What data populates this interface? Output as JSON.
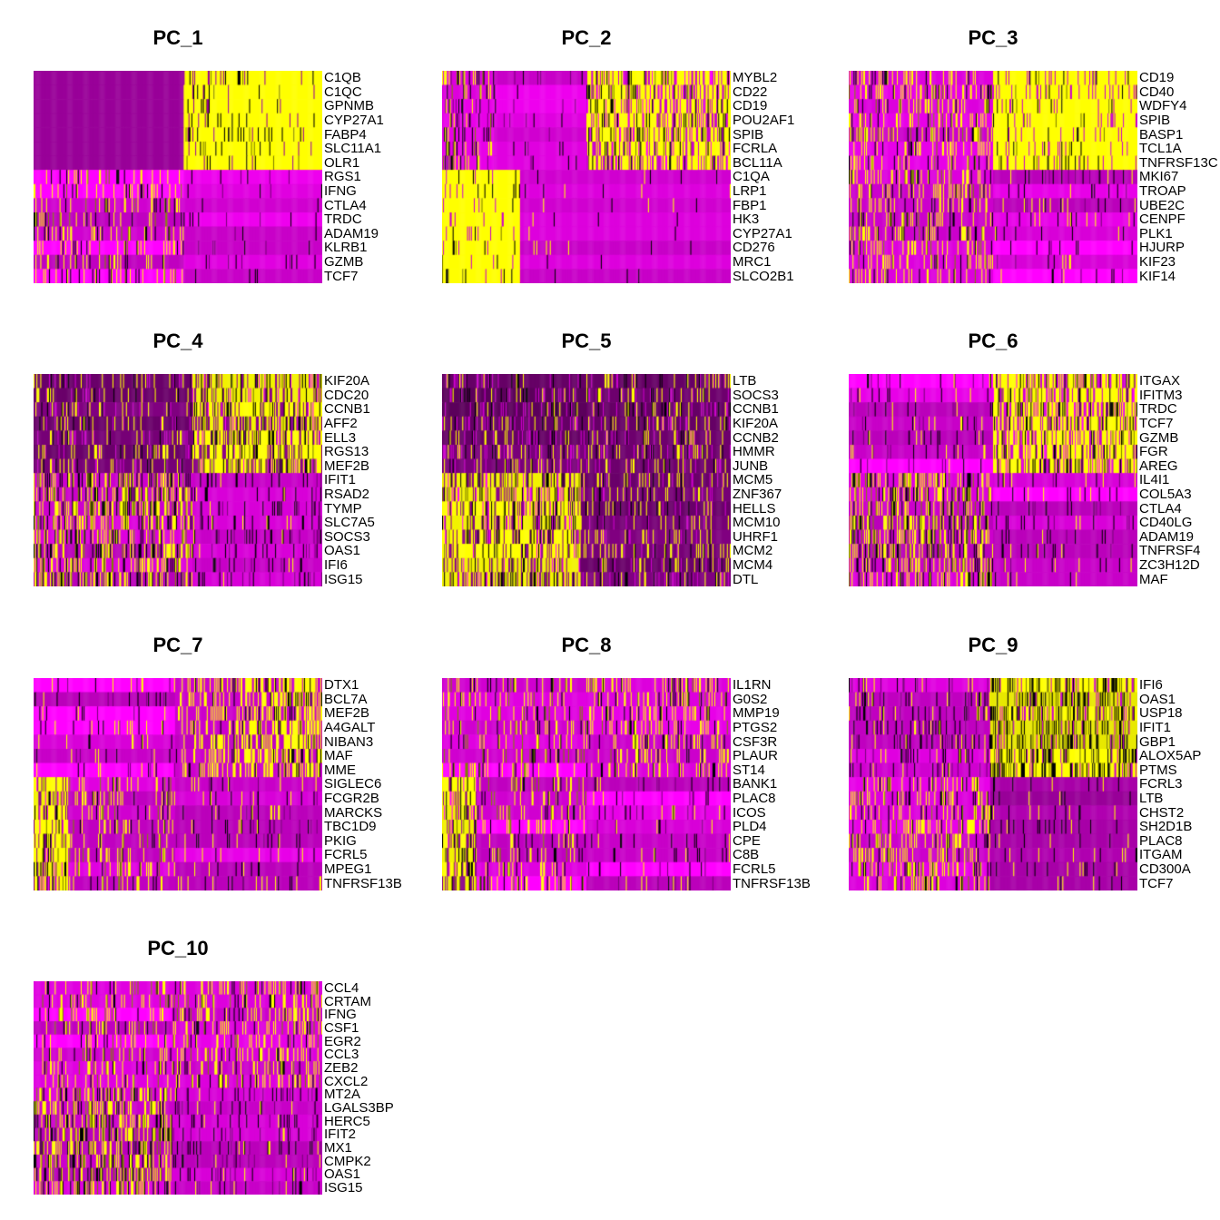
{
  "figure_title": "",
  "chart_data": {
    "type": "heatmap",
    "style": "PCA dimensional-reduction heatmaps (cells as columns, genes as rows)",
    "colorscale": {
      "low": "#FF00FF",
      "mid": "#000000",
      "high": "#FFFF00",
      "low_mid_blend": "#990099"
    },
    "legend": "none",
    "grid": {
      "columns": 3,
      "rows": 4
    },
    "panels": [
      {
        "title": "PC_1",
        "genes": [
          "C1QB",
          "C1QC",
          "GPNMB",
          "CYP27A1",
          "FABP4",
          "SLC11A1",
          "OLR1",
          "RGS1",
          "IFNG",
          "CTLA4",
          "TRDC",
          "ADAM19",
          "KLRB1",
          "GZMB",
          "TCF7"
        ],
        "groups": [
          {
            "rows": 7,
            "segs": [
              {
                "to": 0.52,
                "p": "solidPurple"
              },
              {
                "to": 1,
                "p": "yellowClean"
              }
            ]
          },
          {
            "rows": 8,
            "segs": [
              {
                "to": 0.52,
                "p": "magentaNoisy"
              },
              {
                "to": 1,
                "p": "magentaSmooth"
              }
            ]
          }
        ]
      },
      {
        "title": "PC_2",
        "genes": [
          "MYBL2",
          "CD22",
          "CD19",
          "POU2AF1",
          "SPIB",
          "FCRLA",
          "BCL11A",
          "C1QA",
          "LRP1",
          "FBP1",
          "HK3",
          "CYP27A1",
          "CD276",
          "MRC1",
          "SLCO2B1"
        ],
        "groups": [
          {
            "rows": 7,
            "segs": [
              {
                "to": 0.18,
                "p": "magentaTickDense"
              },
              {
                "to": 0.5,
                "p": "magentaSmooth"
              },
              {
                "to": 1,
                "p": "yellowMagentaDense"
              }
            ]
          },
          {
            "rows": 8,
            "segs": [
              {
                "to": 0.27,
                "p": "yellowSolid"
              },
              {
                "to": 1,
                "p": "magentaSmoothSparse"
              }
            ]
          }
        ]
      },
      {
        "title": "PC_3",
        "genes": [
          "CD19",
          "CD40",
          "WDFY4",
          "SPIB",
          "BASP1",
          "TCL1A",
          "TNFRSF13C",
          "MKI67",
          "TROAP",
          "UBE2C",
          "CENPF",
          "PLK1",
          "HJURP",
          "KIF23",
          "KIF14"
        ],
        "groups": [
          {
            "rows": 7,
            "segs": [
              {
                "to": 0.5,
                "p": "magentaYellowNoisy"
              },
              {
                "to": 1,
                "p": "yellowLightMag"
              }
            ]
          },
          {
            "rows": 8,
            "segs": [
              {
                "to": 0.5,
                "p": "magentaYellowNoisy"
              },
              {
                "to": 1,
                "p": "magentaSmoothish"
              }
            ]
          }
        ]
      },
      {
        "title": "PC_4",
        "genes": [
          "KIF20A",
          "CDC20",
          "CCNB1",
          "AFF2",
          "ELL3",
          "RGS13",
          "MEF2B",
          "IFIT1",
          "RSAD2",
          "TYMP",
          "SLC7A5",
          "SOCS3",
          "OAS1",
          "IFI6",
          "ISG15"
        ],
        "groups": [
          {
            "rows": 7,
            "segs": [
              {
                "to": 0.55,
                "p": "purpleYellowTicks"
              },
              {
                "to": 1,
                "p": "yellowHeavy"
              }
            ]
          },
          {
            "rows": 8,
            "segs": [
              {
                "to": 0.55,
                "p": "mixedDense"
              },
              {
                "to": 1,
                "p": "magentaDarkTicks"
              }
            ]
          }
        ]
      },
      {
        "title": "PC_5",
        "genes": [
          "LTB",
          "SOCS3",
          "CCNB1",
          "KIF20A",
          "CCNB2",
          "HMMR",
          "JUNB",
          "MCM5",
          "ZNF367",
          "HELLS",
          "MCM10",
          "UHRF1",
          "MCM2",
          "MCM4",
          "DTL"
        ],
        "groups": [
          {
            "rows": 7,
            "segs": [
              {
                "to": 0.5,
                "p": "purpleNoisy"
              },
              {
                "to": 1,
                "p": "purpleNoisyYellow"
              }
            ]
          },
          {
            "rows": 8,
            "segs": [
              {
                "to": 0.48,
                "p": "yellowHeavy"
              },
              {
                "to": 1,
                "p": "purpleYellowTicks"
              }
            ]
          }
        ]
      },
      {
        "title": "PC_6",
        "genes": [
          "ITGAX",
          "IFITM3",
          "TRDC",
          "TCF7",
          "GZMB",
          "FGR",
          "AREG",
          "IL4I1",
          "COL5A3",
          "CTLA4",
          "CD40LG",
          "ADAM19",
          "TNFRSF4",
          "ZC3H12D",
          "MAF"
        ],
        "groups": [
          {
            "rows": 7,
            "segs": [
              {
                "to": 0.5,
                "p": "magentaSmoothish"
              },
              {
                "to": 1,
                "p": "yellowMagentaDense"
              }
            ]
          },
          {
            "rows": 8,
            "segs": [
              {
                "to": 0.5,
                "p": "mixedDense"
              },
              {
                "to": 1,
                "p": "magentaSmoothish"
              }
            ]
          }
        ]
      },
      {
        "title": "PC_7",
        "genes": [
          "DTX1",
          "BCL7A",
          "MEF2B",
          "A4GALT",
          "NIBAN3",
          "MAF",
          "MME",
          "SIGLEC6",
          "FCGR2B",
          "MARCKS",
          "TBC1D9",
          "PKIG",
          "FCRL5",
          "MPEG1",
          "TNFRSF13B"
        ],
        "groups": [
          {
            "rows": 7,
            "segs": [
              {
                "to": 0.49,
                "p": "magentaSmoothish"
              },
              {
                "to": 1,
                "p": "magentaYellowHeavy"
              }
            ]
          },
          {
            "rows": 8,
            "segs": [
              {
                "to": 0.12,
                "p": "yellowHeavy"
              },
              {
                "to": 0.49,
                "p": "magentaNoisy"
              },
              {
                "to": 1,
                "p": "magentaSmoothish"
              }
            ]
          }
        ]
      },
      {
        "title": "PC_8",
        "genes": [
          "IL1RN",
          "G0S2",
          "MMP19",
          "PTGS2",
          "CSF3R",
          "PLAUR",
          "ST14",
          "BANK1",
          "PLAC8",
          "ICOS",
          "PLD4",
          "CPE",
          "C8B",
          "FCRL5",
          "TNFRSF13B"
        ],
        "groups": [
          {
            "rows": 7,
            "segs": [
              {
                "to": 0.5,
                "p": "magentaNoisy"
              },
              {
                "to": 1,
                "p": "magentaYellowNoisy"
              }
            ]
          },
          {
            "rows": 8,
            "segs": [
              {
                "to": 0.12,
                "p": "yellowHeavy"
              },
              {
                "to": 0.5,
                "p": "magentaNoisy"
              },
              {
                "to": 1,
                "p": "magentaSmoothish"
              }
            ]
          }
        ]
      },
      {
        "title": "PC_9",
        "genes": [
          "IFI6",
          "OAS1",
          "USP18",
          "IFIT1",
          "GBP1",
          "ALOX5AP",
          "PTMS",
          "FCRL3",
          "LTB",
          "CHST2",
          "SH2D1B",
          "PLAC8",
          "ITGAM",
          "CD300A",
          "TCF7"
        ],
        "groups": [
          {
            "rows": 7,
            "segs": [
              {
                "to": 0.49,
                "p": "magentaNoisyDark"
              },
              {
                "to": 1,
                "p": "yellowBlackDense"
              }
            ]
          },
          {
            "rows": 8,
            "segs": [
              {
                "to": 0.49,
                "p": "magentaYellowNoisy"
              },
              {
                "to": 1,
                "p": "purpleSparse"
              }
            ]
          }
        ]
      },
      {
        "title": "PC_10",
        "genes": [
          "CCL4",
          "CRTAM",
          "IFNG",
          "CSF1",
          "EGR2",
          "CCL3",
          "ZEB2",
          "CXCL2",
          "MT2A",
          "LGALS3BP",
          "HERC5",
          "IFIT2",
          "MX1",
          "CMPK2",
          "OAS1",
          "ISG15"
        ],
        "groups": [
          {
            "rows": 8,
            "segs": [
              {
                "to": 0.48,
                "p": "magentaNoisy"
              },
              {
                "to": 1,
                "p": "magentaYellowNoisy"
              }
            ]
          },
          {
            "rows": 8,
            "segs": [
              {
                "to": 0.48,
                "p": "mixedDense"
              },
              {
                "to": 1,
                "p": "magentaDarkTicks"
              }
            ]
          }
        ]
      }
    ],
    "texture_patterns": {
      "solidPurple": {
        "bases": [
          "#990099"
        ],
        "ticks": []
      },
      "yellowClean": {
        "bases": [
          "#FFFF00"
        ],
        "ticks": [
          [
            "#000000",
            0.045
          ],
          [
            "#990099",
            0.035
          ],
          [
            "#808000",
            0.02
          ]
        ],
        "grad": "down"
      },
      "yellowSolid": {
        "bases": [
          "#FFFF00"
        ],
        "ticks": [
          [
            "#CC00CC",
            0.05
          ],
          [
            "#000000",
            0.03
          ],
          [
            "#808000",
            0.02
          ]
        ]
      },
      "yellowLightMag": {
        "bases": [
          "#FFFF00"
        ],
        "ticks": [
          [
            "#CC00CC",
            0.09
          ],
          [
            "#000000",
            0.04
          ],
          [
            "#808000",
            0.02
          ]
        ]
      },
      "yellowHeavy": {
        "bases": [
          "#FFFF00",
          "#F2F200"
        ],
        "ticks": [
          [
            "#8A008A",
            0.2
          ],
          [
            "#000000",
            0.1
          ],
          [
            "#808000",
            0.05
          ],
          [
            "#FF00FF",
            0.05
          ]
        ]
      },
      "yellowMagentaDense": {
        "bases": [
          "#FFFF00"
        ],
        "ticks": [
          [
            "#CC00CC",
            0.22
          ],
          [
            "#000000",
            0.1
          ],
          [
            "#808000",
            0.05
          ],
          [
            "#FF00FF",
            0.06
          ]
        ]
      },
      "yellowBlackDense": {
        "bases": [
          "#FFFF00",
          "#E8E800"
        ],
        "ticks": [
          [
            "#000000",
            0.2
          ],
          [
            "#808000",
            0.12
          ],
          [
            "#CC00CC",
            0.08
          ]
        ]
      },
      "magentaSmooth": {
        "bases": [
          "#E000E0",
          "#D000D0",
          "#C800C8",
          "#EE00EE"
        ],
        "ticks": [
          [
            "#000000",
            0.02
          ],
          [
            "#7A007A",
            0.015
          ]
        ]
      },
      "magentaSmoothSparse": {
        "bases": [
          "#DD00DD",
          "#D000D0",
          "#C800C8"
        ],
        "ticks": [
          [
            "#000000",
            0.012
          ],
          [
            "#FFFF00",
            0.006
          ]
        ]
      },
      "magentaSmoothish": {
        "bases": [
          "#D800D8",
          "#C800C8",
          "#BB00BB",
          "#E800E8",
          "#FF00FF"
        ],
        "ticks": [
          [
            "#000000",
            0.04
          ],
          [
            "#FFFF00",
            0.03
          ],
          [
            "#7A007A",
            0.02
          ]
        ]
      },
      "magentaNoisy": {
        "bases": [
          "#E000E0",
          "#D000D0",
          "#C000C0",
          "#FF00FF"
        ],
        "ticks": [
          [
            "#FFFF00",
            0.11
          ],
          [
            "#000000",
            0.05
          ],
          [
            "#808000",
            0.03
          ]
        ]
      },
      "magentaNoisyDark": {
        "bases": [
          "#D000D0",
          "#C000C0",
          "#E000E0"
        ],
        "ticks": [
          [
            "#000000",
            0.09
          ],
          [
            "#7A007A",
            0.06
          ],
          [
            "#FFFF00",
            0.05
          ]
        ]
      },
      "magentaYellowNoisy": {
        "bases": [
          "#DD00DD",
          "#CC00CC",
          "#E800E8"
        ],
        "ticks": [
          [
            "#FFFF00",
            0.17
          ],
          [
            "#000000",
            0.07
          ],
          [
            "#808000",
            0.03
          ]
        ]
      },
      "magentaYellowHeavy": {
        "bases": [
          "#CC00CC",
          "#C000C0"
        ],
        "ticks": [
          [
            "#FFFF00",
            0.32
          ],
          [
            "#000000",
            0.06
          ]
        ],
        "grad": "up"
      },
      "magentaTickDense": {
        "bases": [
          "#E800E8",
          "#DD00DD"
        ],
        "ticks": [
          [
            "#000000",
            0.15
          ],
          [
            "#FFFF00",
            0.1
          ],
          [
            "#808000",
            0.06
          ],
          [
            "#7A007A",
            0.05
          ]
        ]
      },
      "mixedDense": {
        "bases": [
          "#CC00CC",
          "#BB00BB",
          "#DD00DD"
        ],
        "ticks": [
          [
            "#FFFF00",
            0.24
          ],
          [
            "#000000",
            0.13
          ],
          [
            "#808000",
            0.06
          ]
        ]
      },
      "magentaDarkTicks": {
        "bases": [
          "#C800C8",
          "#BB00BB",
          "#D800D8"
        ],
        "ticks": [
          [
            "#000000",
            0.07
          ],
          [
            "#7A007A",
            0.05
          ],
          [
            "#FFFF00",
            0.02
          ]
        ]
      },
      "purpleNoisy": {
        "bases": [
          "#6E006E",
          "#660066",
          "#7A007A",
          "#5C005C"
        ],
        "ticks": [
          [
            "#CC00CC",
            0.12
          ],
          [
            "#FFFF00",
            0.08
          ],
          [
            "#000000",
            0.05
          ]
        ]
      },
      "purpleNoisyYellow": {
        "bases": [
          "#6E006E",
          "#660066",
          "#7A007A"
        ],
        "ticks": [
          [
            "#FFFF00",
            0.12
          ],
          [
            "#CC00CC",
            0.09
          ],
          [
            "#000000",
            0.05
          ]
        ]
      },
      "purpleYellowTicks": {
        "bases": [
          "#770077",
          "#6A006A",
          "#800080"
        ],
        "ticks": [
          [
            "#FFFF00",
            0.11
          ],
          [
            "#CC00CC",
            0.07
          ],
          [
            "#000000",
            0.04
          ]
        ]
      },
      "purpleSparse": {
        "bases": [
          "#A800A8",
          "#990099",
          "#B000B0"
        ],
        "ticks": [
          [
            "#000000",
            0.06
          ],
          [
            "#FFFF00",
            0.02
          ]
        ]
      }
    }
  }
}
